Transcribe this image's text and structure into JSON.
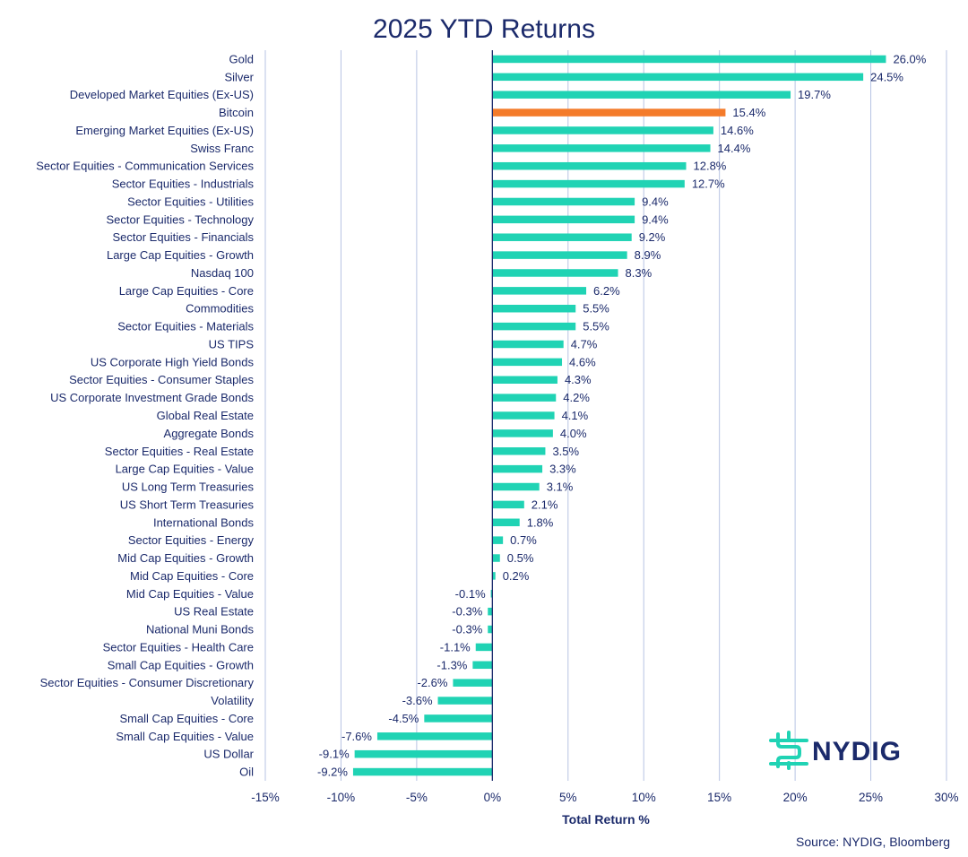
{
  "chart_data": {
    "type": "bar",
    "orientation": "horizontal",
    "title": "2025 YTD Returns",
    "xlabel": "Total Return %",
    "source": "Source: NYDIG, Bloomberg",
    "xlim": [
      -15,
      30
    ],
    "xticks": [
      -15,
      -10,
      -5,
      0,
      5,
      10,
      15,
      20,
      25,
      30
    ],
    "xtick_labels": [
      "-15%",
      "-10%",
      "-5%",
      "0%",
      "5%",
      "10%",
      "15%",
      "20%",
      "25%",
      "30%"
    ],
    "grid": "vertical",
    "colors": {
      "default": "#20d3b4",
      "highlight": "#f47b2a",
      "text": "#1b2a6b",
      "grid": "#b7c3e3"
    },
    "highlight": "Bitcoin",
    "categories": [
      "Gold",
      "Silver",
      "Developed Market Equities (Ex-US)",
      "Bitcoin",
      "Emerging Market Equities (Ex-US)",
      "Swiss Franc",
      "Sector Equities - Communication Services",
      "Sector Equities - Industrials",
      "Sector Equities - Utilities",
      "Sector Equities - Technology",
      "Sector Equities - Financials",
      "Large Cap Equities - Growth",
      "Nasdaq 100",
      "Large Cap Equities - Core",
      "Commodities",
      "Sector Equities - Materials",
      "US TIPS",
      "US Corporate High Yield Bonds",
      "Sector Equities - Consumer Staples",
      "US Corporate Investment Grade Bonds",
      "Global Real Estate",
      "Aggregate Bonds",
      "Sector Equities - Real Estate",
      "Large Cap Equities - Value",
      "US Long Term Treasuries",
      "US Short Term Treasuries",
      "International Bonds",
      "Sector Equities - Energy",
      "Mid Cap Equities - Growth",
      "Mid Cap Equities - Core",
      "Mid Cap Equities - Value",
      "US Real Estate",
      "National Muni Bonds",
      "Sector Equities - Health Care",
      "Small Cap Equities - Growth",
      "Sector Equities - Consumer Discretionary",
      "Volatility",
      "Small Cap Equities - Core",
      "Small Cap Equities - Value",
      "US Dollar",
      "Oil"
    ],
    "values": [
      26.0,
      24.5,
      19.7,
      15.4,
      14.6,
      14.4,
      12.8,
      12.7,
      9.4,
      9.4,
      9.2,
      8.9,
      8.3,
      6.2,
      5.5,
      5.5,
      4.7,
      4.6,
      4.3,
      4.2,
      4.1,
      4.0,
      3.5,
      3.3,
      3.1,
      2.1,
      1.8,
      0.7,
      0.5,
      0.2,
      -0.1,
      -0.3,
      -0.3,
      -1.1,
      -1.3,
      -2.6,
      -3.6,
      -4.5,
      -7.6,
      -9.1,
      -9.2
    ],
    "value_labels": [
      "26.0%",
      "24.5%",
      "19.7%",
      "15.4%",
      "14.6%",
      "14.4%",
      "12.8%",
      "12.7%",
      "9.4%",
      "9.4%",
      "9.2%",
      "8.9%",
      "8.3%",
      "6.2%",
      "5.5%",
      "5.5%",
      "4.7%",
      "4.6%",
      "4.3%",
      "4.2%",
      "4.1%",
      "4.0%",
      "3.5%",
      "3.3%",
      "3.1%",
      "2.1%",
      "1.8%",
      "0.7%",
      "0.5%",
      "0.2%",
      "-0.1%",
      "-0.3%",
      "-0.3%",
      "-1.1%",
      "-1.3%",
      "-2.6%",
      "-3.6%",
      "-4.5%",
      "-7.6%",
      "-9.1%",
      "-9.2%"
    ]
  },
  "logo": {
    "text": "NYDIG",
    "icon": "nydig-logo-icon",
    "color": "#20d3b4"
  }
}
